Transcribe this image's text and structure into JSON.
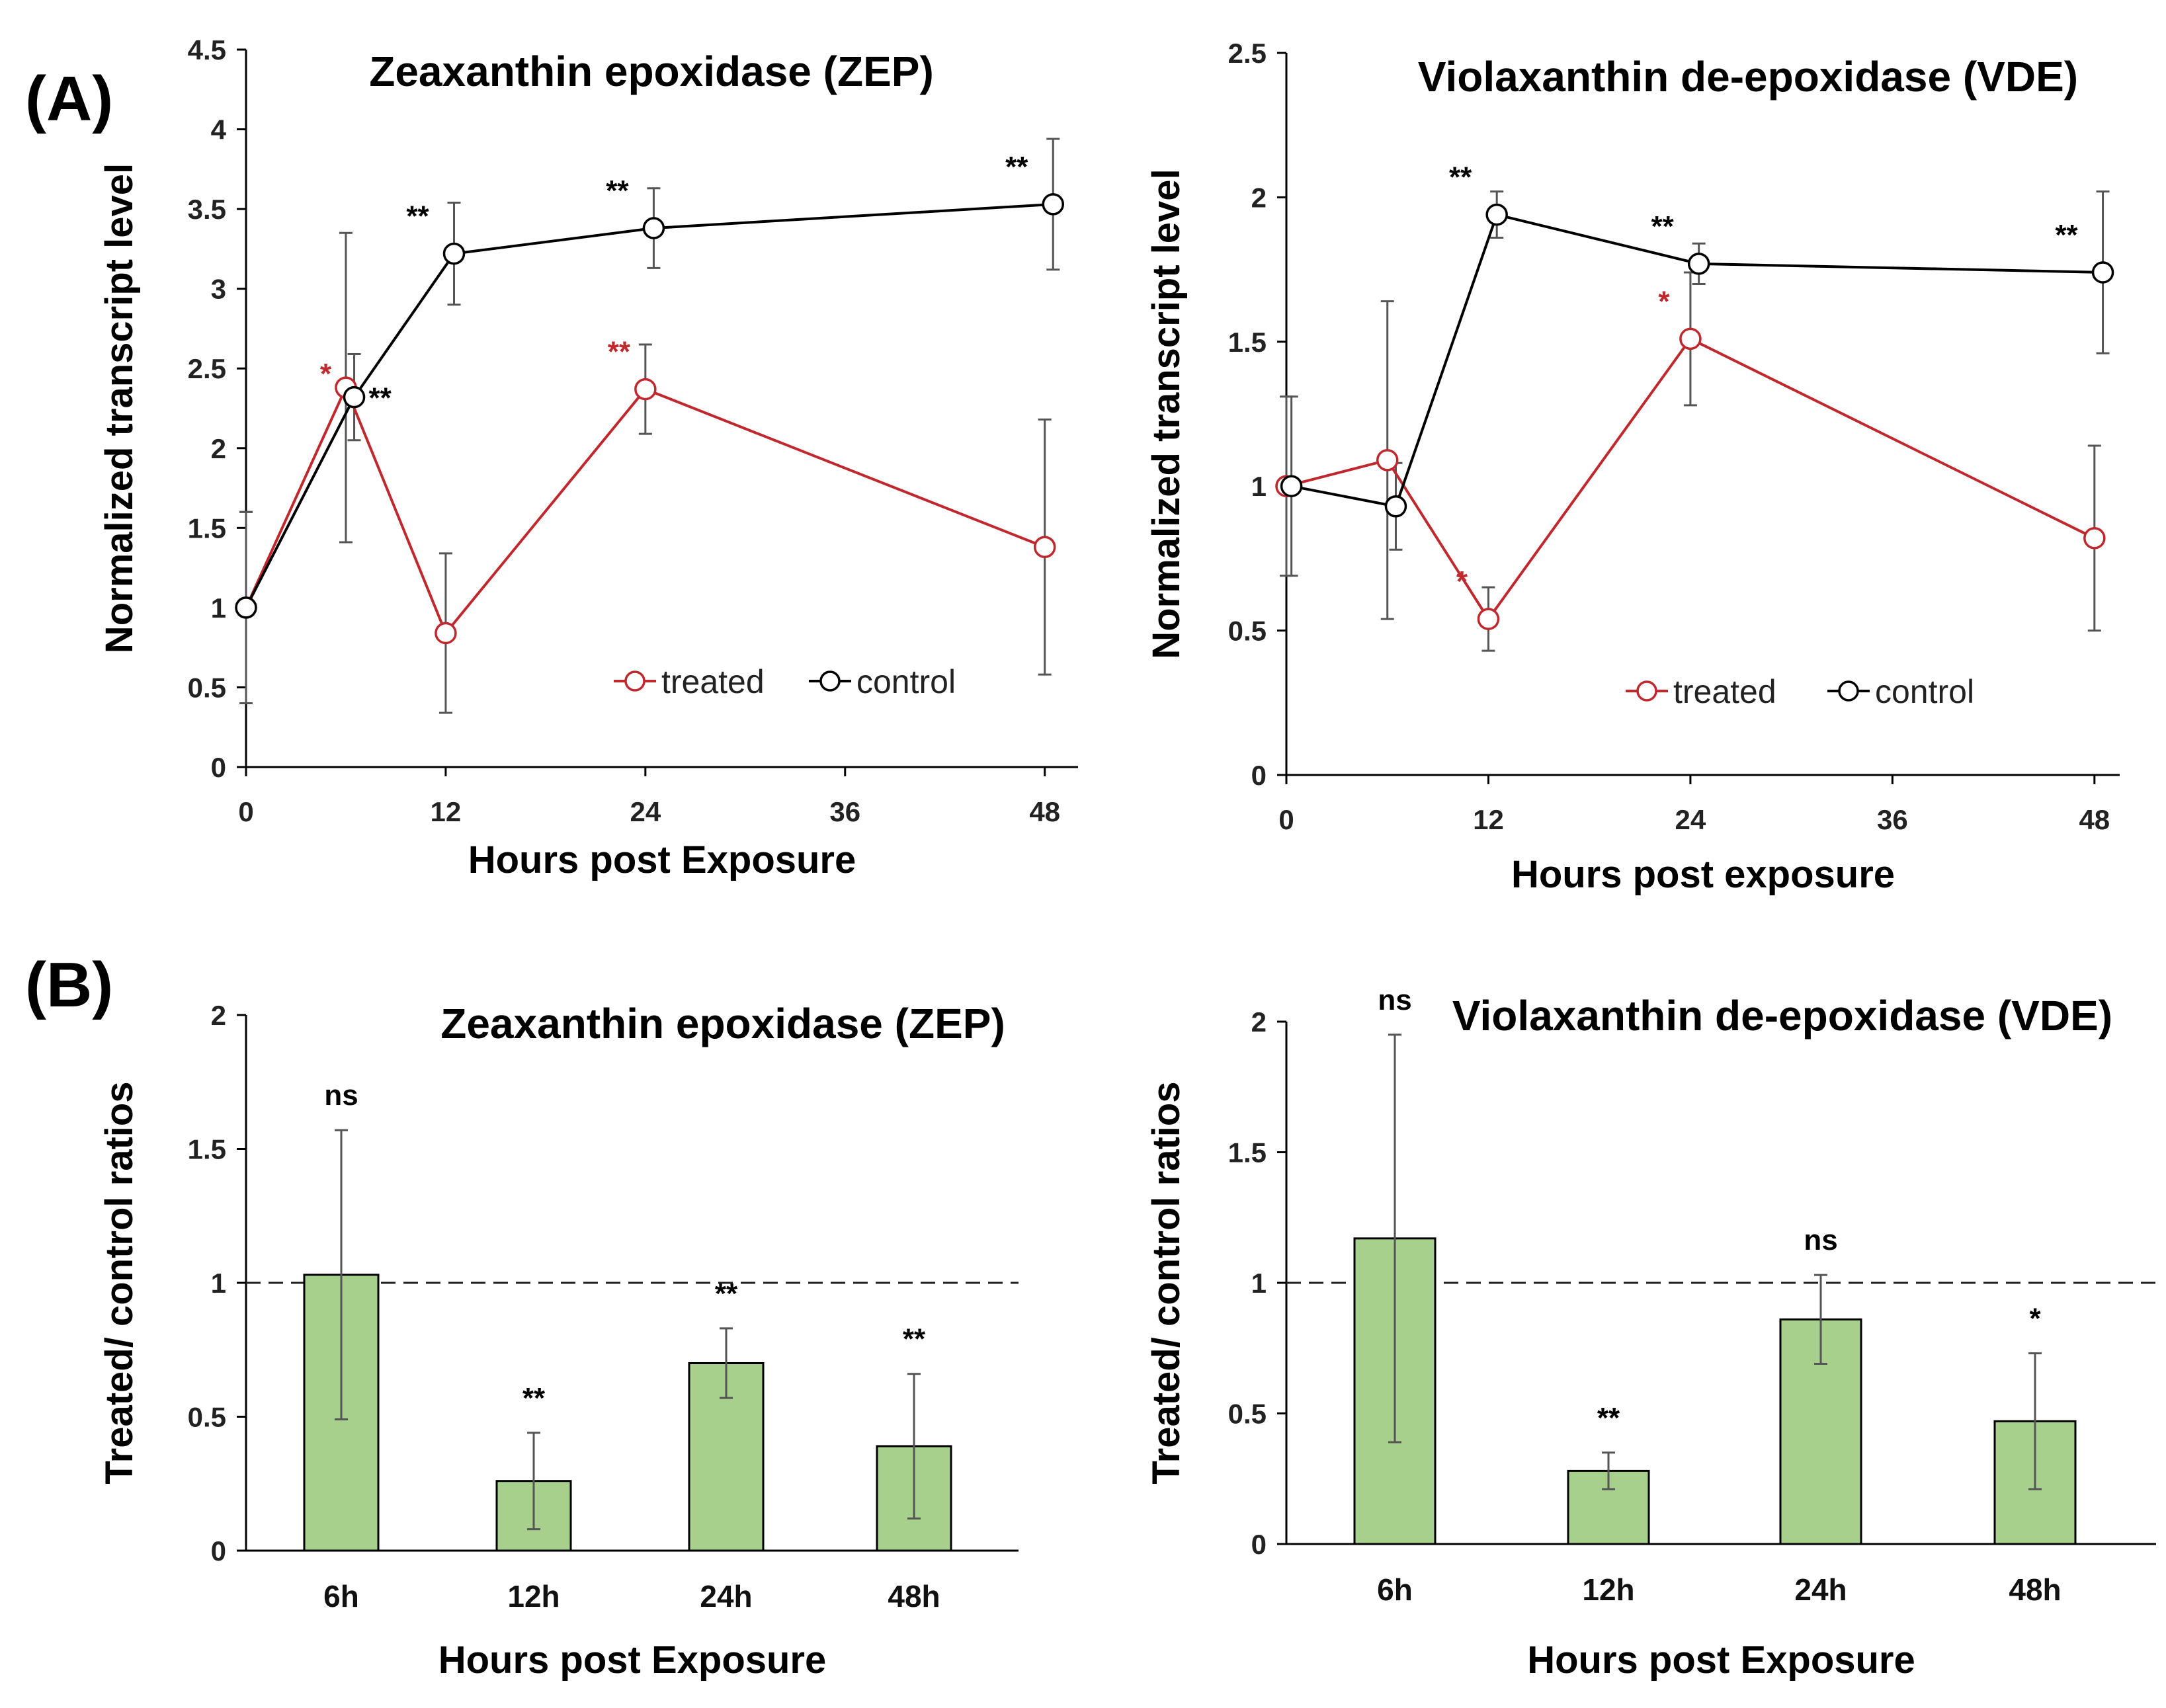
{
  "panels": {
    "a": "(A)",
    "b": "(B)"
  },
  "chart_data": [
    {
      "type": "line",
      "title": "Zeaxanthin epoxidase (ZEP)",
      "xlabel": "Hours post Exposure",
      "ylabel": "Normalized transcript level",
      "xlim": [
        0,
        50
      ],
      "ylim": [
        0,
        4.5
      ],
      "xticks": [
        "0",
        "12",
        "24",
        "36",
        "48"
      ],
      "yticks": [
        "0",
        "0.5",
        "1",
        "1.5",
        "2",
        "2.5",
        "3",
        "3.5",
        "4",
        "4.5"
      ],
      "legend": {
        "position": "bottom-right",
        "entries": [
          "treated",
          "control"
        ]
      },
      "series": [
        {
          "name": "treated",
          "color": "#c0282d",
          "x": [
            0,
            6,
            12,
            24,
            48
          ],
          "y": [
            1.0,
            2.38,
            0.84,
            2.37,
            1.38
          ],
          "err": [
            0.6,
            0.97,
            0.5,
            0.28,
            0.8
          ],
          "annot": [
            "",
            "*",
            "",
            "**",
            ""
          ]
        },
        {
          "name": "control",
          "color": "#000000",
          "x": [
            0,
            6.5,
            12.5,
            24.5,
            48.5
          ],
          "y": [
            1.0,
            2.32,
            3.22,
            3.38,
            3.53
          ],
          "err": [
            0.6,
            0.27,
            0.32,
            0.25,
            0.41
          ],
          "annot": [
            "",
            "**",
            "**",
            "**",
            "**"
          ]
        }
      ]
    },
    {
      "type": "line",
      "title": "Violaxanthin de-epoxidase (VDE)",
      "xlabel": "Hours post exposure",
      "ylabel": "Normalized transcript level",
      "xlim": [
        0,
        49.5
      ],
      "ylim": [
        0,
        2.5
      ],
      "xticks": [
        "0",
        "12",
        "24",
        "36",
        "48"
      ],
      "yticks": [
        "0",
        "0.5",
        "1",
        "1.5",
        "2",
        "2.5"
      ],
      "legend": {
        "position": "bottom-right",
        "entries": [
          "treated",
          "control"
        ]
      },
      "series": [
        {
          "name": "treated",
          "color": "#c0282d",
          "x": [
            0,
            6,
            12,
            24,
            48
          ],
          "y": [
            1.0,
            1.09,
            0.54,
            1.51,
            0.82
          ],
          "err": [
            0.31,
            0.55,
            0.11,
            0.23,
            0.32
          ],
          "annot": [
            "",
            "",
            "*",
            "*",
            ""
          ]
        },
        {
          "name": "control",
          "color": "#000000",
          "x": [
            0.3,
            6.5,
            12.5,
            24.5,
            48.5
          ],
          "y": [
            1.0,
            0.93,
            1.94,
            1.77,
            1.74
          ],
          "err": [
            0.31,
            0.15,
            0.08,
            0.07,
            0.28
          ],
          "annot": [
            "",
            "",
            "**",
            "**",
            "**"
          ]
        }
      ]
    },
    {
      "type": "bar",
      "title": "Zeaxanthin epoxidase (ZEP)",
      "xlabel": "Hours post Exposure",
      "ylabel": "Treated/ control ratios",
      "ylim": [
        0,
        2
      ],
      "yticks": [
        "0",
        "0.5",
        "1",
        "1.5",
        "2"
      ],
      "reference_line": 1,
      "bar_color": "#a8d08d",
      "categories": [
        "6h",
        "12h",
        "24h",
        "48h"
      ],
      "values": [
        1.03,
        0.26,
        0.7,
        0.39
      ],
      "errors": [
        0.54,
        0.18,
        0.13,
        0.27
      ],
      "annotations": [
        "ns",
        "**",
        "**",
        "**"
      ]
    },
    {
      "type": "bar",
      "title": "Violaxanthin de-epoxidase (VDE)",
      "xlabel": "Hours post Exposure",
      "ylabel": "Treated/ control ratios",
      "ylim": [
        0,
        2
      ],
      "yticks": [
        "0",
        "0.5",
        "1",
        "1.5",
        "2"
      ],
      "reference_line": 1,
      "bar_color": "#a8d08d",
      "categories": [
        "6h",
        "12h",
        "24h",
        "48h"
      ],
      "values": [
        1.17,
        0.28,
        0.86,
        0.47
      ],
      "errors": [
        0.78,
        0.07,
        0.17,
        0.26
      ],
      "annotations": [
        "ns",
        "**",
        "ns",
        "*"
      ]
    }
  ]
}
